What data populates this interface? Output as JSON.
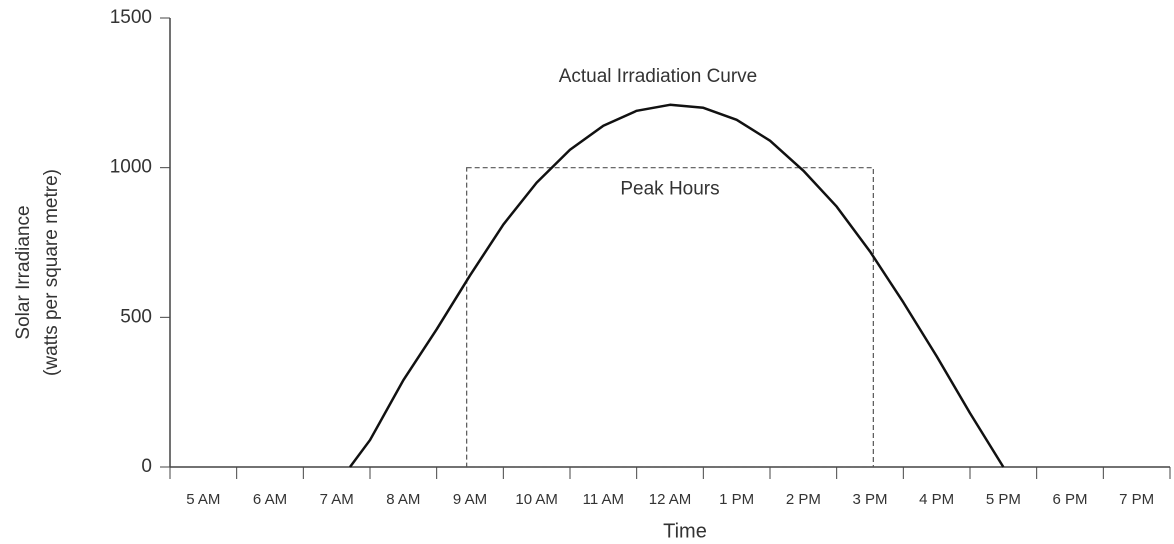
{
  "chart_data": {
    "type": "line",
    "ylabel": [
      "Solar Irradiance",
      "(watts per square metre)"
    ],
    "xlabel": "Time",
    "xlim": [
      5,
      20
    ],
    "xticks": [
      {
        "value": 5,
        "label": "5 AM"
      },
      {
        "value": 6,
        "label": "6 AM"
      },
      {
        "value": 7,
        "label": "7 AM"
      },
      {
        "value": 8,
        "label": "8 AM"
      },
      {
        "value": 9,
        "label": "9 AM"
      },
      {
        "value": 10,
        "label": "10 AM"
      },
      {
        "value": 11,
        "label": "11 AM"
      },
      {
        "value": 12,
        "label": "12 AM"
      },
      {
        "value": 13,
        "label": "1 PM"
      },
      {
        "value": 14,
        "label": "2 PM"
      },
      {
        "value": 15,
        "label": "3 PM"
      },
      {
        "value": 16,
        "label": "4 PM"
      },
      {
        "value": 17,
        "label": "5 PM"
      },
      {
        "value": 18,
        "label": "6 PM"
      },
      {
        "value": 19,
        "label": "7 PM"
      }
    ],
    "ylim": [
      0,
      1500
    ],
    "yticks": [
      0,
      500,
      1000,
      1500
    ],
    "x": [
      7.7,
      8,
      8.5,
      9,
      9.5,
      10,
      10.5,
      11,
      11.5,
      12,
      12.5,
      13,
      13.5,
      14,
      14.5,
      15,
      15.5,
      16,
      16.5,
      17,
      17.5
    ],
    "series": [
      {
        "name": "Actual Irradiation Curve",
        "color": "#111111",
        "values": [
          0,
          90,
          290,
          460,
          640,
          810,
          950,
          1060,
          1140,
          1190,
          1210,
          1200,
          1160,
          1090,
          990,
          870,
          720,
          550,
          370,
          180,
          0
        ]
      }
    ],
    "peak_hours": {
      "label": "Peak Hours",
      "x": [
        9.45,
        15.55
      ],
      "value": 1000,
      "color": "#555555"
    }
  }
}
